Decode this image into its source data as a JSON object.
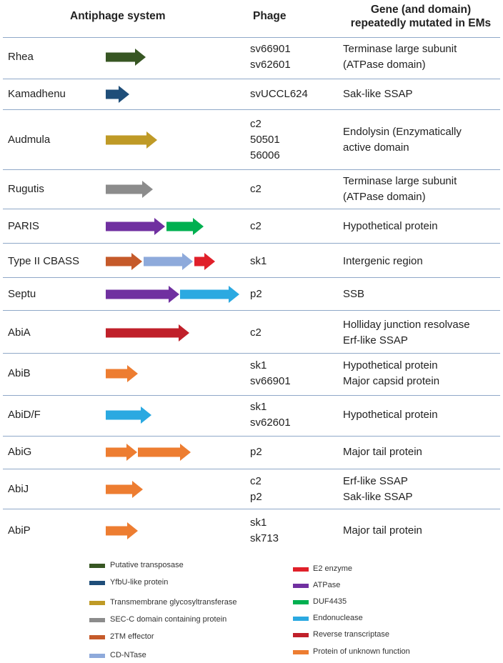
{
  "header": {
    "system": "Antiphage system",
    "phage": "Phage",
    "gene": "Gene (and domain) repeatedly mutated in EMs"
  },
  "colors": {
    "putative_transposase": "#375623",
    "yfbu": "#1f4e79",
    "tm_glyco": "#bf9a26",
    "secc": "#8c8c8c",
    "tm_effector": "#c55a2a",
    "cd_ntase": "#8eaadb",
    "e2": "#e0202a",
    "atpase": "#7030a0",
    "duf4435": "#00b050",
    "endonuclease": "#2ba9e1",
    "rt": "#c0202a",
    "unknown": "#ed7d31"
  },
  "rows": [
    {
      "name": "Rhea",
      "phages": [
        "sv66901",
        "sv62601"
      ],
      "genes": [
        "Terminase large subunit",
        "(ATPase domain)"
      ],
      "arrows": [
        "putative_transposase"
      ]
    },
    {
      "name": "Kamadhenu",
      "phages": [
        "svUCCL624"
      ],
      "genes": [
        "Sak-like SSAP"
      ],
      "arrows": [
        "yfbu"
      ]
    },
    {
      "name": "Audmula",
      "phages": [
        "c2",
        "50501",
        "56006"
      ],
      "genes": [
        "Endolysin (Enzymatically",
        "active domain"
      ],
      "arrows": [
        "tm_glyco"
      ]
    },
    {
      "name": "Rugutis",
      "phages": [
        "c2"
      ],
      "genes": [
        "Terminase large subunit",
        "(ATPase domain)"
      ],
      "arrows": [
        "secc"
      ]
    },
    {
      "name": "PARIS",
      "phages": [
        "c2"
      ],
      "genes": [
        "Hypothetical protein"
      ],
      "arrows": [
        "atpase",
        "duf4435"
      ]
    },
    {
      "name": "Type II CBASS",
      "phages": [
        "sk1"
      ],
      "genes": [
        "Intergenic region"
      ],
      "arrows": [
        "tm_effector",
        "cd_ntase",
        "e2"
      ]
    },
    {
      "name": "Septu",
      "phages": [
        "p2"
      ],
      "genes": [
        "SSB"
      ],
      "arrows": [
        "atpase",
        "endonuclease"
      ]
    },
    {
      "name": "AbiA",
      "phages": [
        "c2"
      ],
      "genes": [
        "Holliday junction resolvase",
        "Erf-like SSAP"
      ],
      "arrows": [
        "rt"
      ]
    },
    {
      "name": "AbiB",
      "phages": [
        "sk1",
        "sv66901"
      ],
      "genes": [
        "Hypothetical protein",
        "Major capsid protein"
      ],
      "arrows": [
        "unknown"
      ]
    },
    {
      "name": "AbiD/F",
      "phages": [
        "sk1",
        "sv62601"
      ],
      "genes": [
        "Hypothetical protein"
      ],
      "arrows": [
        "endonuclease"
      ]
    },
    {
      "name": "AbiG",
      "phages": [
        "p2"
      ],
      "genes": [
        "Major tail protein"
      ],
      "arrows": [
        "unknown",
        "unknown"
      ]
    },
    {
      "name": "AbiJ",
      "phages": [
        "c2",
        "p2"
      ],
      "genes": [
        "Erf-like SSAP",
        "Sak-like SSAP"
      ],
      "arrows": [
        "unknown"
      ]
    },
    {
      "name": "AbiP",
      "phages": [
        "sk1",
        "sk713"
      ],
      "genes": [
        "Major tail protein"
      ],
      "arrows": [
        "unknown"
      ]
    }
  ],
  "legend": {
    "left": [
      {
        "key": "putative_transposase",
        "label": "Putative transposase"
      },
      {
        "key": "yfbu",
        "label": "YfbU-like protein"
      },
      {
        "key": "tm_glyco",
        "label": "Transmembrane glycosyltransferase"
      },
      {
        "key": "secc",
        "label": "SEC-C domain containing protein"
      },
      {
        "key": "tm_effector",
        "label": "2TM effector"
      },
      {
        "key": "cd_ntase",
        "label": "CD-NTase"
      }
    ],
    "right": [
      {
        "key": "e2",
        "label": "E2 enzyme"
      },
      {
        "key": "atpase",
        "label": "ATPase"
      },
      {
        "key": "duf4435",
        "label": "DUF4435"
      },
      {
        "key": "endonuclease",
        "label": "Endonuclease"
      },
      {
        "key": "rt",
        "label": "Reverse transcriptase"
      },
      {
        "key": "unknown",
        "label": "Protein of unknown function"
      }
    ]
  }
}
